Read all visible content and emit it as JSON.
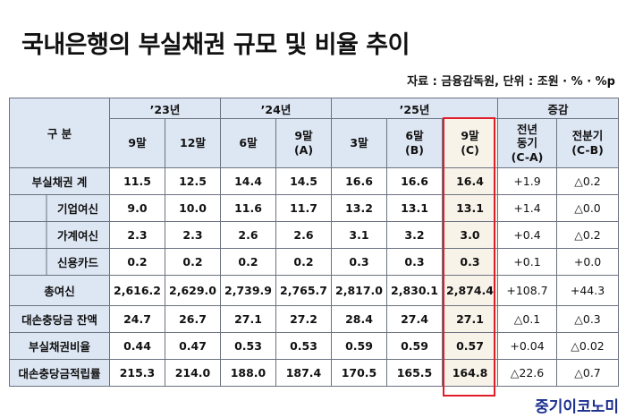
{
  "title": "국내은행의 부실채권 규모 및 비율 추이",
  "source": "자료 : 금융감독원, 단위 : 조원 · % · %p",
  "header": {
    "category": "구 분",
    "year_23": "’23년",
    "year_24": "’24년",
    "year_25": "’25년",
    "change": "증감",
    "cols": [
      {
        "line1": "9말",
        "line2": ""
      },
      {
        "line1": "12말",
        "line2": ""
      },
      {
        "line1": "6말",
        "line2": ""
      },
      {
        "line1": "9말",
        "line2": "(A)"
      },
      {
        "line1": "3말",
        "line2": ""
      },
      {
        "line1": "6말",
        "line2": "(B)"
      },
      {
        "line1": "9말",
        "line2": "(C)"
      },
      {
        "line1": "전년",
        "line2": "동기",
        "line3": "(C-A)"
      },
      {
        "line1": "전분기",
        "line2": "(C-B)",
        "line3": ""
      }
    ]
  },
  "rows": [
    {
      "label": "부실채권 계",
      "values": [
        "11.5",
        "12.5",
        "14.4",
        "14.5",
        "16.6",
        "16.6",
        "16.4",
        "+1.9",
        "△0.2"
      ]
    },
    {
      "label": "기업여신",
      "values": [
        "9.0",
        "10.0",
        "11.6",
        "11.7",
        "13.2",
        "13.1",
        "13.1",
        "+1.4",
        "△0.0"
      ]
    },
    {
      "label": "가계여신",
      "values": [
        "2.3",
        "2.3",
        "2.6",
        "2.6",
        "3.1",
        "3.2",
        "3.0",
        "+0.4",
        "△0.2"
      ]
    },
    {
      "label": "신용카드",
      "values": [
        "0.2",
        "0.2",
        "0.2",
        "0.2",
        "0.3",
        "0.3",
        "0.3",
        "+0.1",
        "+0.0"
      ]
    },
    {
      "label": "총여신",
      "values": [
        "2,616.2",
        "2,629.0",
        "2,739.9",
        "2,765.7",
        "2,817.0",
        "2,830.1",
        "2,874.4",
        "+108.7",
        "+44.3"
      ]
    },
    {
      "label": "대손충당금 잔액",
      "values": [
        "24.7",
        "26.7",
        "27.1",
        "27.2",
        "28.4",
        "27.4",
        "27.1",
        "△0.1",
        "△0.3"
      ]
    },
    {
      "label": "부실채권비율",
      "values": [
        "0.44",
        "0.47",
        "0.53",
        "0.53",
        "0.59",
        "0.59",
        "0.57",
        "+0.04",
        "△0.02"
      ]
    },
    {
      "label": "대손충당금적립률",
      "values": [
        "215.3",
        "214.0",
        "188.0",
        "187.4",
        "170.5",
        "165.5",
        "164.8",
        "△22.6",
        "△0.7"
      ]
    }
  ],
  "logo": "중기이코노미",
  "colors": {
    "header_bg": "#dde6f3",
    "highlight_border": "#e11d2a",
    "highlight_bg": "#f8f3e9",
    "logo": "#1b2f8f"
  }
}
